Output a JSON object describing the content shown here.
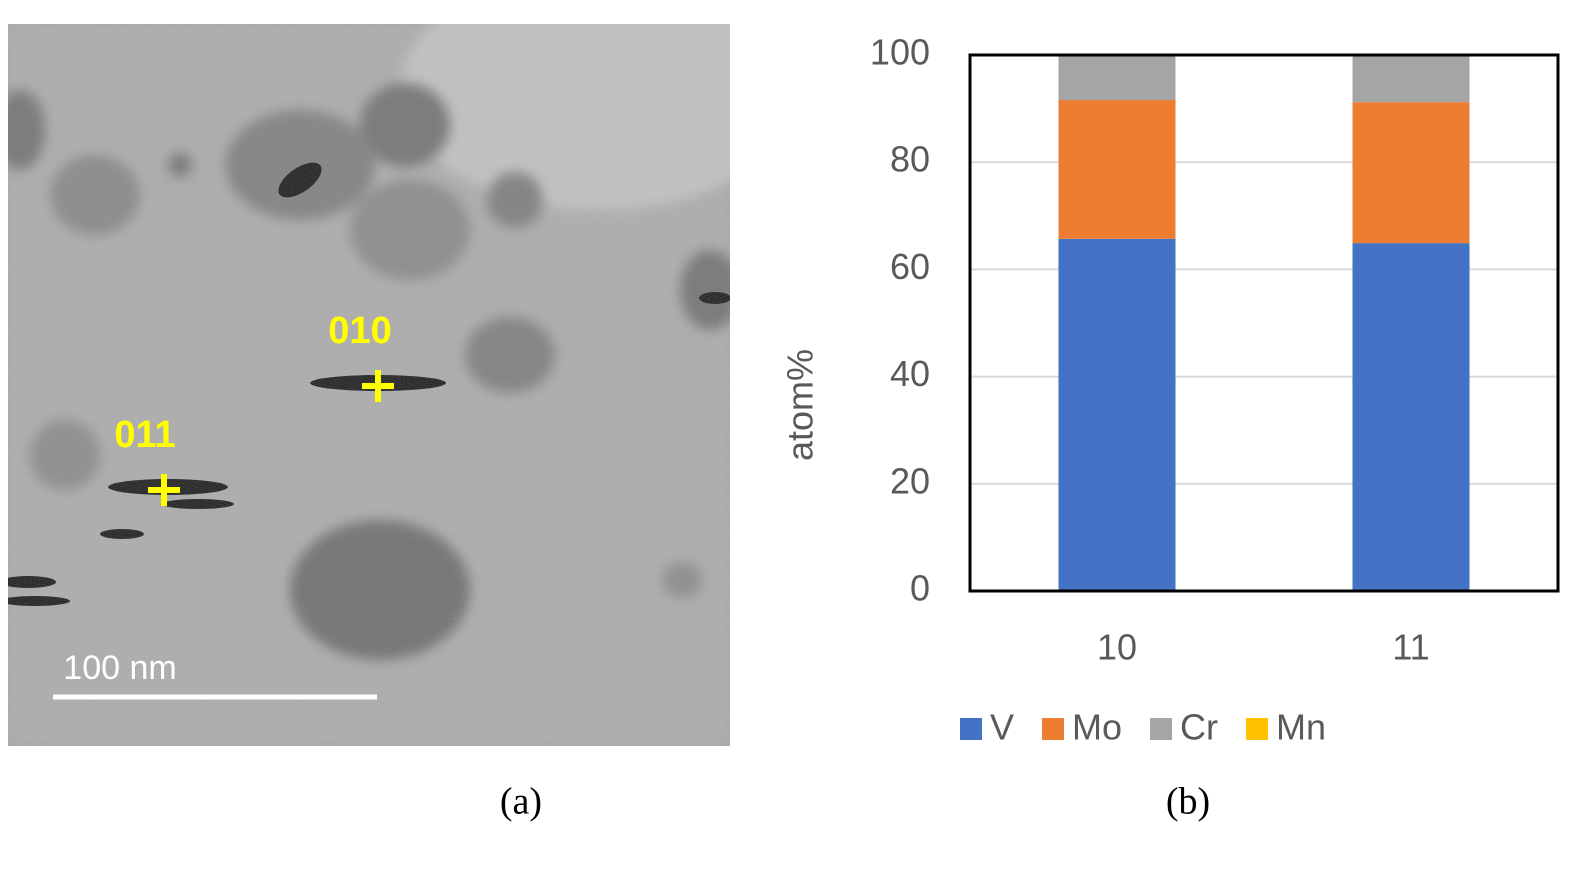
{
  "image_panel": {
    "labels": [
      "010",
      "011"
    ],
    "scale_bar": "100 nm",
    "caption": "(a)"
  },
  "chart_caption": "(b)",
  "chart_data": {
    "type": "stacked_bar",
    "y_label": "atom%",
    "categories": [
      "10",
      "11"
    ],
    "series": [
      {
        "name": "V",
        "color": "#4472c4",
        "values": [
          65.7,
          64.9
        ]
      },
      {
        "name": "Mo",
        "color": "#ed7d31",
        "values": [
          25.9,
          26.3
        ]
      },
      {
        "name": "Cr",
        "color": "#a5a5a5",
        "values": [
          8.2,
          8.6
        ]
      },
      {
        "name": "Mn",
        "color": "#ffc000",
        "values": [
          0.2,
          0.2
        ]
      }
    ],
    "ylim": [
      0,
      100
    ],
    "yticks": [
      0,
      20,
      40,
      60,
      80,
      100
    ],
    "grid": true,
    "legend": "bottom"
  }
}
